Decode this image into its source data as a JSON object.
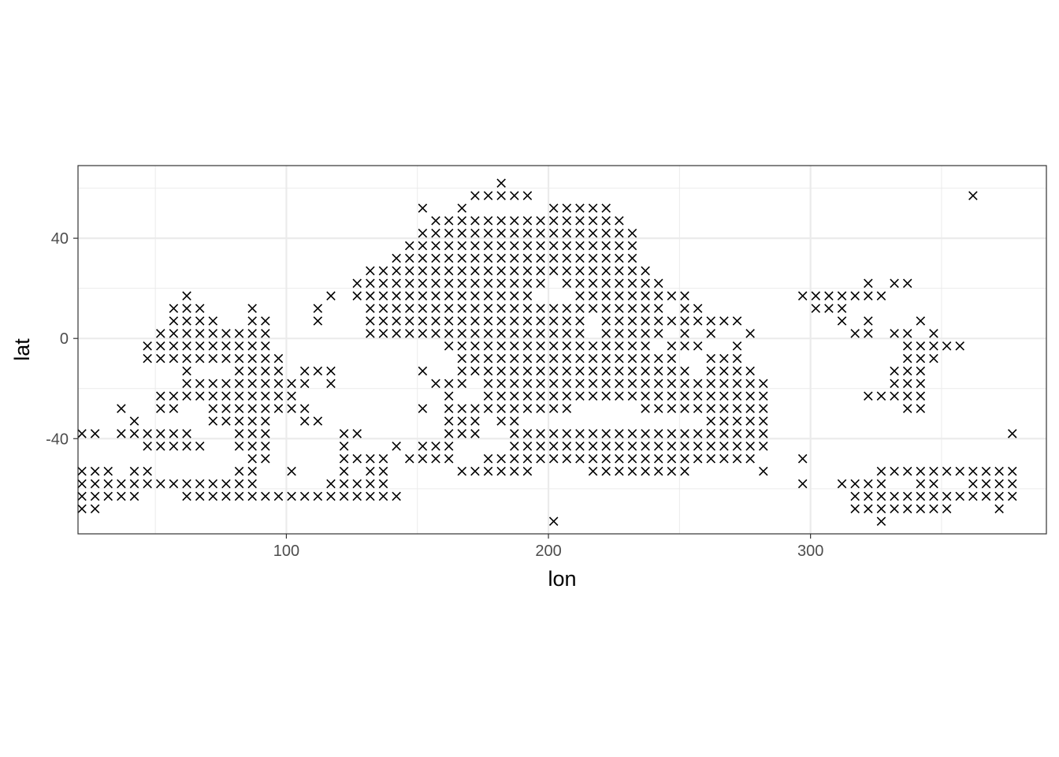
{
  "chart_data": {
    "type": "scatter",
    "title": "",
    "xlabel": "lon",
    "ylabel": "lat",
    "xlim": [
      20.5,
      390
    ],
    "ylim": [
      -78,
      69
    ],
    "x_ticks": [
      100,
      200,
      300
    ],
    "x_tick_labels": [
      "100",
      "200",
      "300"
    ],
    "y_ticks": [
      -40,
      0,
      40
    ],
    "y_tick_labels": [
      "-40",
      "0",
      "40"
    ],
    "x_minor_ticks": [
      50,
      150,
      250,
      350
    ],
    "y_minor_ticks": [
      -60,
      -20,
      20,
      60
    ],
    "grid": true,
    "legend": "none",
    "marker": "x",
    "colors": {
      "marker": "#000000",
      "grid": "#ebebeb",
      "panel_border": "#333333",
      "background": "#ffffff"
    },
    "lon_step": 5,
    "lat_step": 5,
    "rows": [
      {
        "lat": 62,
        "lons": [
          182
        ]
      },
      {
        "lat": 57,
        "lons": [
          172,
          177,
          182,
          187,
          192,
          362
        ]
      },
      {
        "lat": 52,
        "lons": [
          152,
          167,
          202,
          207,
          212,
          217,
          222
        ]
      },
      {
        "lat": 47,
        "lons": [
          157,
          162,
          167,
          172,
          177,
          182,
          187,
          192,
          197,
          202,
          207,
          212,
          217,
          222,
          227
        ]
      },
      {
        "lat": 42,
        "lons": [
          152,
          157,
          162,
          167,
          172,
          177,
          182,
          187,
          192,
          197,
          202,
          207,
          212,
          217,
          222,
          227,
          232
        ]
      },
      {
        "lat": 37,
        "lons": [
          147,
          152,
          157,
          162,
          167,
          172,
          177,
          182,
          187,
          192,
          197,
          202,
          207,
          212,
          217,
          222,
          227,
          232
        ]
      },
      {
        "lat": 32,
        "lons": [
          142,
          147,
          152,
          157,
          162,
          167,
          172,
          177,
          182,
          187,
          192,
          197,
          202,
          207,
          212,
          217,
          222,
          227,
          232
        ]
      },
      {
        "lat": 27,
        "lons": [
          132,
          137,
          142,
          147,
          152,
          157,
          162,
          167,
          172,
          177,
          182,
          187,
          192,
          197,
          202,
          207,
          212,
          217,
          222,
          227,
          232,
          237
        ]
      },
      {
        "lat": 22,
        "lons": [
          127,
          132,
          137,
          142,
          147,
          152,
          157,
          162,
          167,
          172,
          177,
          182,
          187,
          192,
          197,
          207,
          212,
          217,
          222,
          227,
          232,
          237,
          242,
          322,
          332,
          337
        ]
      },
      {
        "lat": 17,
        "lons": [
          62,
          117,
          127,
          132,
          137,
          142,
          147,
          152,
          157,
          162,
          167,
          172,
          177,
          182,
          187,
          192,
          212,
          217,
          222,
          227,
          232,
          237,
          242,
          247,
          252,
          297,
          302,
          307,
          312,
          317,
          322,
          327
        ]
      },
      {
        "lat": 12,
        "lons": [
          57,
          62,
          67,
          87,
          112,
          132,
          137,
          142,
          147,
          152,
          157,
          162,
          167,
          172,
          177,
          182,
          187,
          192,
          197,
          202,
          207,
          212,
          217,
          222,
          227,
          232,
          237,
          242,
          252,
          257,
          302,
          307,
          312
        ]
      },
      {
        "lat": 7,
        "lons": [
          57,
          62,
          67,
          72,
          87,
          92,
          112,
          132,
          137,
          142,
          147,
          152,
          157,
          162,
          167,
          172,
          177,
          182,
          187,
          192,
          197,
          202,
          207,
          212,
          222,
          227,
          232,
          237,
          242,
          247,
          252,
          257,
          262,
          267,
          272,
          312,
          322,
          342
        ]
      },
      {
        "lat": 2,
        "lons": [
          52,
          57,
          62,
          67,
          72,
          77,
          82,
          87,
          92,
          132,
          137,
          142,
          147,
          152,
          157,
          162,
          167,
          172,
          177,
          182,
          187,
          192,
          197,
          202,
          207,
          212,
          222,
          227,
          232,
          237,
          242,
          252,
          262,
          277,
          317,
          322,
          332,
          337,
          347
        ]
      },
      {
        "lat": -3,
        "lons": [
          47,
          52,
          57,
          62,
          67,
          72,
          77,
          82,
          87,
          92,
          162,
          167,
          172,
          177,
          182,
          187,
          192,
          197,
          202,
          207,
          212,
          217,
          222,
          227,
          232,
          237,
          247,
          252,
          257,
          272,
          337,
          342,
          347,
          352,
          357
        ]
      },
      {
        "lat": -8,
        "lons": [
          47,
          52,
          57,
          62,
          67,
          72,
          77,
          82,
          87,
          92,
          97,
          167,
          172,
          177,
          182,
          187,
          192,
          197,
          202,
          207,
          212,
          217,
          222,
          227,
          232,
          237,
          242,
          247,
          262,
          267,
          272,
          337,
          342,
          347
        ]
      },
      {
        "lat": -13,
        "lons": [
          62,
          82,
          87,
          92,
          97,
          107,
          112,
          117,
          152,
          167,
          172,
          177,
          182,
          187,
          192,
          197,
          202,
          207,
          212,
          217,
          222,
          227,
          232,
          237,
          242,
          247,
          252,
          262,
          267,
          272,
          277,
          332,
          337,
          342
        ]
      },
      {
        "lat": -18,
        "lons": [
          62,
          67,
          72,
          77,
          82,
          87,
          92,
          97,
          102,
          107,
          117,
          157,
          162,
          167,
          177,
          182,
          187,
          192,
          197,
          202,
          207,
          212,
          217,
          222,
          227,
          232,
          237,
          242,
          247,
          252,
          257,
          262,
          267,
          272,
          277,
          282,
          332,
          337,
          342
        ]
      },
      {
        "lat": -23,
        "lons": [
          52,
          57,
          62,
          67,
          72,
          77,
          82,
          87,
          92,
          97,
          102,
          162,
          177,
          182,
          187,
          192,
          197,
          202,
          207,
          212,
          217,
          222,
          227,
          232,
          237,
          242,
          247,
          252,
          257,
          262,
          267,
          272,
          277,
          282,
          322,
          327,
          332,
          337,
          342
        ]
      },
      {
        "lat": -28,
        "lons": [
          37,
          52,
          57,
          72,
          77,
          82,
          87,
          92,
          97,
          102,
          107,
          152,
          162,
          167,
          172,
          177,
          182,
          187,
          192,
          197,
          202,
          207,
          237,
          242,
          247,
          252,
          257,
          262,
          267,
          272,
          277,
          282,
          337,
          342
        ]
      },
      {
        "lat": -33,
        "lons": [
          42,
          72,
          77,
          82,
          87,
          92,
          107,
          112,
          162,
          167,
          172,
          182,
          187,
          262,
          267,
          272,
          277,
          282
        ]
      },
      {
        "lat": -38,
        "lons": [
          22,
          27,
          37,
          42,
          47,
          52,
          57,
          62,
          82,
          87,
          92,
          122,
          127,
          162,
          167,
          172,
          187,
          192,
          197,
          202,
          207,
          212,
          217,
          222,
          227,
          232,
          237,
          242,
          247,
          252,
          257,
          262,
          267,
          272,
          277,
          282,
          377
        ]
      },
      {
        "lat": -43,
        "lons": [
          47,
          52,
          57,
          62,
          67,
          82,
          87,
          92,
          122,
          142,
          152,
          157,
          162,
          187,
          192,
          197,
          202,
          207,
          212,
          217,
          222,
          227,
          232,
          237,
          242,
          247,
          252,
          257,
          262,
          267,
          272,
          277,
          282
        ]
      },
      {
        "lat": -48,
        "lons": [
          87,
          92,
          122,
          127,
          132,
          137,
          147,
          152,
          157,
          162,
          177,
          182,
          187,
          192,
          197,
          202,
          207,
          212,
          217,
          222,
          227,
          232,
          237,
          242,
          247,
          252,
          257,
          262,
          267,
          272,
          277,
          297
        ]
      },
      {
        "lat": -53,
        "lons": [
          22,
          27,
          32,
          42,
          47,
          82,
          87,
          102,
          122,
          132,
          137,
          167,
          172,
          177,
          182,
          187,
          192,
          217,
          222,
          227,
          232,
          237,
          242,
          247,
          252,
          282,
          327,
          332,
          337,
          342,
          347,
          352,
          357,
          362,
          367,
          372,
          377
        ]
      },
      {
        "lat": -58,
        "lons": [
          22,
          27,
          32,
          37,
          42,
          47,
          52,
          57,
          62,
          67,
          72,
          77,
          82,
          87,
          117,
          122,
          127,
          132,
          137,
          297,
          312,
          317,
          322,
          327,
          342,
          347,
          362,
          367,
          372,
          377
        ]
      },
      {
        "lat": -63,
        "lons": [
          22,
          27,
          32,
          37,
          42,
          62,
          67,
          72,
          77,
          82,
          87,
          92,
          97,
          102,
          107,
          112,
          117,
          122,
          127,
          132,
          137,
          142,
          317,
          322,
          327,
          332,
          337,
          342,
          347,
          352,
          357,
          362,
          367,
          372,
          377
        ]
      },
      {
        "lat": -68,
        "lons": [
          22,
          27,
          317,
          322,
          327,
          332,
          337,
          342,
          347,
          352,
          372
        ]
      },
      {
        "lat": -73,
        "lons": [
          202,
          327
        ]
      }
    ]
  }
}
